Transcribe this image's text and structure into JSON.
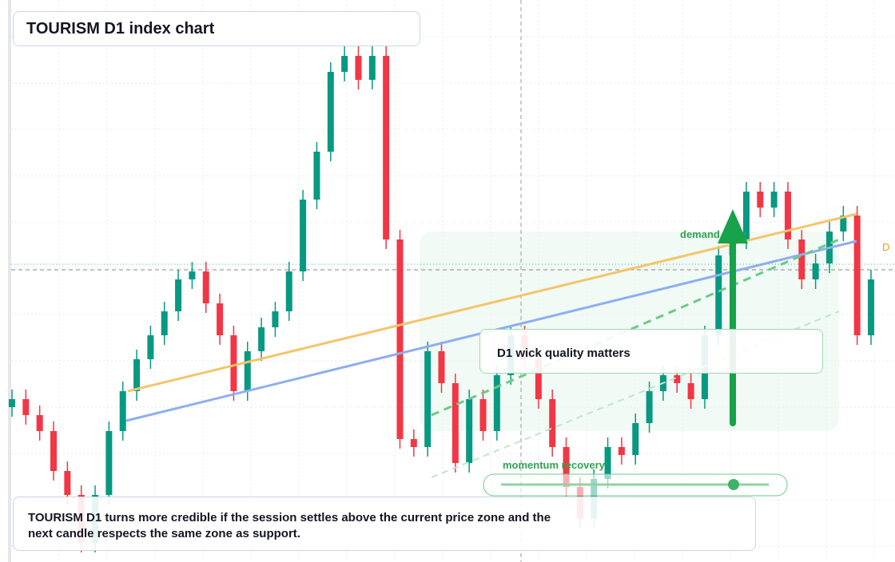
{
  "chart_data": {
    "type": "candlestick",
    "title": "TOURISM D1 index chart",
    "ylim": [
      0,
      704
    ],
    "up_color": "#089981",
    "down_color": "#f23645",
    "open": [
      194,
      204,
      184,
      164,
      114,
      84,
      24,
      84,
      164,
      214,
      254,
      284,
      314,
      354,
      364,
      324,
      284,
      214,
      264,
      294,
      314,
      364,
      454,
      514,
      614,
      634,
      604,
      634,
      404,
      154,
      144,
      264,
      224,
      124,
      204,
      164,
      234,
      284,
      254,
      204,
      144,
      94,
      54,
      104,
      144,
      134,
      174,
      214,
      234,
      224,
      204,
      284,
      384,
      404,
      464,
      444,
      464,
      404,
      354,
      374,
      414,
      434,
      284
    ],
    "high": [
      216,
      216,
      196,
      176,
      126,
      96,
      96,
      176,
      226,
      266,
      296,
      326,
      366,
      376,
      376,
      336,
      296,
      276,
      306,
      326,
      376,
      466,
      526,
      626,
      646,
      646,
      646,
      646,
      416,
      166,
      276,
      276,
      236,
      216,
      216,
      246,
      296,
      296,
      266,
      216,
      156,
      106,
      116,
      156,
      156,
      186,
      226,
      246,
      246,
      236,
      296,
      396,
      416,
      476,
      476,
      476,
      476,
      416,
      386,
      426,
      446,
      446,
      366
    ],
    "low": [
      182,
      172,
      152,
      102,
      72,
      12,
      12,
      72,
      152,
      202,
      242,
      272,
      302,
      342,
      312,
      272,
      202,
      202,
      252,
      282,
      302,
      352,
      442,
      502,
      602,
      592,
      592,
      392,
      142,
      132,
      132,
      212,
      112,
      112,
      152,
      152,
      222,
      242,
      192,
      132,
      82,
      42,
      42,
      92,
      122,
      122,
      162,
      202,
      212,
      192,
      192,
      272,
      372,
      392,
      432,
      432,
      392,
      342,
      342,
      362,
      402,
      272,
      272
    ],
    "close": [
      204,
      184,
      164,
      114,
      84,
      24,
      84,
      164,
      214,
      254,
      284,
      314,
      354,
      364,
      324,
      284,
      214,
      264,
      294,
      314,
      364,
      454,
      514,
      614,
      634,
      604,
      634,
      404,
      154,
      144,
      264,
      224,
      124,
      204,
      164,
      234,
      284,
      254,
      204,
      144,
      94,
      54,
      104,
      144,
      134,
      174,
      214,
      234,
      224,
      204,
      284,
      384,
      404,
      464,
      444,
      464,
      404,
      354,
      374,
      414,
      434,
      284,
      354
    ],
    "annotations": {
      "zone_label": "demand zone",
      "callout": "D1 wick quality matters",
      "slider_label": "momentum recovery",
      "edge_tag": "D"
    },
    "note": "TOURISM D1 turns more credible if the session settles above the current price zone and the next candle respects the same zone as support."
  }
}
